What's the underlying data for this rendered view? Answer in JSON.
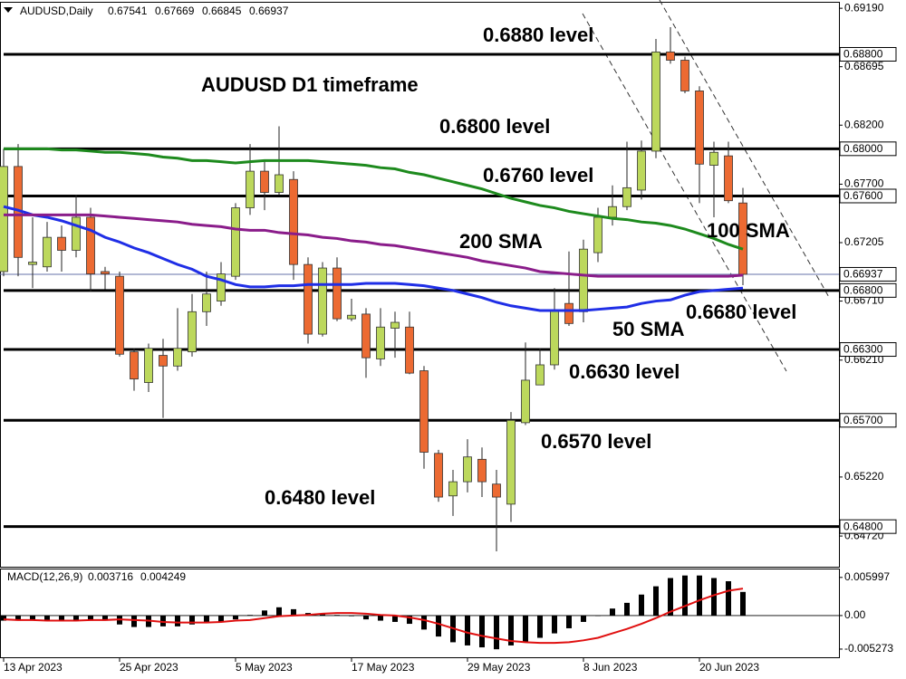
{
  "chart_data": {
    "type": "candlestick",
    "symbol": "AUDUSD,Daily",
    "title": "AUDUSD D1 timeframe",
    "categories": [
      "13 Apr 2023",
      null,
      null,
      null,
      null,
      null,
      null,
      null,
      "25 Apr 2023",
      null,
      null,
      null,
      null,
      null,
      null,
      null,
      "5 May 2023",
      null,
      null,
      null,
      null,
      null,
      null,
      null,
      "17 May 2023",
      null,
      null,
      null,
      null,
      null,
      null,
      null,
      "29 May 2023",
      null,
      null,
      null,
      null,
      null,
      null,
      null,
      "8 Jun 2023",
      null,
      null,
      null,
      null,
      null,
      null,
      null,
      "20 Jun 2023",
      null,
      null,
      null
    ],
    "open": [
      0.6696,
      0.6785,
      0.6702,
      0.67,
      0.6725,
      0.6714,
      0.6742,
      0.6696,
      0.6692,
      0.6628,
      0.6602,
      0.6625,
      0.6616,
      0.6628,
      0.6662,
      0.6671,
      0.6692,
      0.675,
      0.6781,
      0.6763,
      0.6774,
      0.6702,
      0.6643,
      0.6699,
      0.6656,
      0.666,
      0.6622,
      0.6648,
      0.6649,
      0.6612,
      0.6542,
      0.6506,
      0.6518,
      0.6537,
      0.6516,
      0.6499,
      0.6568,
      0.66,
      0.6617,
      0.6669,
      0.6662,
      0.6712,
      0.6742,
      0.6751,
      0.6765,
      0.6798,
      0.6882,
      0.6875,
      0.6849,
      0.6786,
      0.6794,
      0.67541
    ],
    "high": [
      0.68,
      0.6804,
      0.6742,
      0.6738,
      0.6735,
      0.6761,
      0.675,
      0.67,
      0.6696,
      0.6631,
      0.6635,
      0.6639,
      0.6665,
      0.6677,
      0.6696,
      0.6704,
      0.6754,
      0.6804,
      0.679,
      0.6819,
      0.6781,
      0.6708,
      0.6704,
      0.6708,
      0.6673,
      0.6665,
      0.6665,
      0.6662,
      0.6662,
      0.6616,
      0.6545,
      0.6528,
      0.6554,
      0.6547,
      0.6528,
      0.6577,
      0.6636,
      0.6631,
      0.6682,
      0.6713,
      0.6723,
      0.675,
      0.6769,
      0.6806,
      0.6807,
      0.6893,
      0.6903,
      0.6878,
      0.6853,
      0.6806,
      0.6806,
      0.67669
    ],
    "low": [
      0.6692,
      0.6692,
      0.6682,
      0.6696,
      0.6696,
      0.6708,
      0.6679,
      0.6681,
      0.6624,
      0.6595,
      0.6594,
      0.6572,
      0.6612,
      0.6624,
      0.665,
      0.6667,
      0.6689,
      0.6744,
      0.6748,
      0.6761,
      0.6689,
      0.6635,
      0.6641,
      0.6654,
      0.6654,
      0.6606,
      0.6616,
      0.6623,
      0.6609,
      0.6529,
      0.6501,
      0.6489,
      0.6509,
      0.6505,
      0.6459,
      0.6484,
      0.6566,
      0.66,
      0.6613,
      0.665,
      0.6653,
      0.6704,
      0.6735,
      0.6748,
      0.6757,
      0.6792,
      0.6872,
      0.6847,
      0.6754,
      0.6742,
      0.6754,
      0.66845
    ],
    "close": [
      0.6785,
      0.6708,
      0.6704,
      0.6725,
      0.6714,
      0.6742,
      0.6694,
      0.6694,
      0.6626,
      0.6605,
      0.6631,
      0.6616,
      0.6631,
      0.6662,
      0.6677,
      0.6694,
      0.675,
      0.6781,
      0.6763,
      0.6778,
      0.6702,
      0.6643,
      0.6699,
      0.6656,
      0.6659,
      0.6623,
      0.6649,
      0.6653,
      0.661,
      0.6543,
      0.6505,
      0.6518,
      0.6539,
      0.6518,
      0.6505,
      0.657,
      0.6604,
      0.6617,
      0.6663,
      0.6652,
      0.6715,
      0.6742,
      0.6751,
      0.6767,
      0.6798,
      0.6882,
      0.6875,
      0.6849,
      0.6787,
      0.6797,
      0.6756,
      0.66937
    ],
    "up_color": "#bcd85c",
    "down_color": "#ec6a32",
    "ylim": [
      0.6446,
      0.69237
    ],
    "yticks": [
      {
        "value": 0.6919,
        "label": "0.69190"
      },
      {
        "value": 0.68695,
        "label": "0.68695"
      },
      {
        "value": 0.682,
        "label": "0.68200"
      },
      {
        "value": 0.677,
        "label": "0.67700"
      },
      {
        "value": 0.67205,
        "label": "0.67205"
      },
      {
        "value": 0.6671,
        "label": "0.66710"
      },
      {
        "value": 0.6621,
        "label": "0.66210"
      },
      {
        "value": 0.65715,
        "label": "0.65715"
      },
      {
        "value": 0.6522,
        "label": "0.65220"
      },
      {
        "value": 0.6472,
        "label": "0.64720"
      }
    ],
    "levels": [
      {
        "value": 0.688,
        "label": "0.68800",
        "annotation": "0.6880 level"
      },
      {
        "value": 0.68,
        "label": "0.68000",
        "annotation": "0.6800 level"
      },
      {
        "value": 0.676,
        "label": "0.67600",
        "annotation": "0.6760 level"
      },
      {
        "value": 0.668,
        "label": "0.66800",
        "annotation": "0.6680 level"
      },
      {
        "value": 0.663,
        "label": "0.66300",
        "annotation": "0.6630 level"
      },
      {
        "value": 0.657,
        "label": "0.65700",
        "annotation": "0.6570 level"
      },
      {
        "value": 0.648,
        "label": "0.64800",
        "annotation": "0.6480 level"
      }
    ],
    "series": [
      {
        "name": "50 SMA",
        "color": "#1f2ee6",
        "values": [
          0.6751,
          0.6748,
          0.6744,
          0.6742,
          0.6739,
          0.6735,
          0.6731,
          0.6725,
          0.6721,
          0.6716,
          0.6712,
          0.6707,
          0.6702,
          0.6698,
          0.6692,
          0.6689,
          0.6685,
          0.6683,
          0.6683,
          0.6684,
          0.6684,
          0.6685,
          0.6685,
          0.6685,
          0.6685,
          0.6686,
          0.6686,
          0.6686,
          0.6685,
          0.6684,
          0.6682,
          0.668,
          0.6677,
          0.6674,
          0.667,
          0.6667,
          0.6665,
          0.6663,
          0.6663,
          0.6663,
          0.6663,
          0.6664,
          0.6665,
          0.6666,
          0.6669,
          0.6671,
          0.6672,
          0.6676,
          0.6679,
          0.668,
          0.6681,
          0.6682
        ]
      },
      {
        "name": "100 SMA",
        "color": "#1d8a1d",
        "values": [
          0.68,
          0.68,
          0.68,
          0.68,
          0.6799,
          0.6799,
          0.6798,
          0.6797,
          0.6797,
          0.6796,
          0.6795,
          0.6793,
          0.6792,
          0.679,
          0.679,
          0.6789,
          0.6788,
          0.6789,
          0.679,
          0.679,
          0.679,
          0.679,
          0.6789,
          0.6788,
          0.6787,
          0.6786,
          0.6784,
          0.6783,
          0.678,
          0.6778,
          0.6775,
          0.6772,
          0.6769,
          0.6766,
          0.6762,
          0.6758,
          0.6755,
          0.6752,
          0.675,
          0.6747,
          0.6745,
          0.6743,
          0.6741,
          0.674,
          0.6738,
          0.6737,
          0.6735,
          0.6732,
          0.6728,
          0.6724,
          0.6719,
          0.6715
        ]
      },
      {
        "name": "200 SMA",
        "color": "#8a1c8a",
        "values": [
          0.6744,
          0.6744,
          0.6744,
          0.6744,
          0.6744,
          0.6744,
          0.6744,
          0.6743,
          0.6742,
          0.6741,
          0.674,
          0.6739,
          0.6738,
          0.6736,
          0.6735,
          0.6734,
          0.6732,
          0.6731,
          0.6731,
          0.6729,
          0.6728,
          0.6727,
          0.6725,
          0.6724,
          0.6722,
          0.6721,
          0.6719,
          0.6718,
          0.6716,
          0.6714,
          0.6712,
          0.671,
          0.6708,
          0.6705,
          0.6703,
          0.6701,
          0.6699,
          0.6696,
          0.6695,
          0.6694,
          0.6693,
          0.6692,
          0.6692,
          0.6692,
          0.6692,
          0.6692,
          0.6692,
          0.6692,
          0.6692,
          0.6692,
          0.6692,
          0.6693
        ]
      }
    ],
    "macd": {
      "label": "MACD(12,26,9)",
      "ylim": [
        -0.00656,
        0.00725
      ],
      "yticks": [
        0.005997,
        {
          "value": 0,
          "label": "0.00"
        },
        -0.005273
      ],
      "hist_color": "#000000",
      "signal_color": "#e01010",
      "histogram": [
        -0.0008,
        -0.0008,
        -0.0007,
        -0.0007,
        -0.0008,
        -0.0008,
        -0.0008,
        -0.0008,
        -0.0014,
        -0.0018,
        -0.0018,
        -0.0017,
        -0.0017,
        -0.0014,
        -0.0011,
        -0.001,
        -0.0006,
        0.0001,
        0.0008,
        0.0013,
        0.001,
        0.0004,
        0.0003,
        0.0001,
        -0.0001,
        -0.0006,
        -0.0008,
        -0.001,
        -0.0013,
        -0.0022,
        -0.0033,
        -0.0042,
        -0.0047,
        -0.005,
        -0.0053,
        -0.0047,
        -0.0042,
        -0.0035,
        -0.0028,
        -0.002,
        -0.001,
        0.0,
        0.0011,
        0.002,
        0.0033,
        0.0046,
        0.0059,
        0.0063,
        0.0063,
        0.0059,
        0.0054,
        0.003716
      ],
      "signal": [
        -0.0006,
        -0.0007,
        -0.0007,
        -0.0008,
        -0.0008,
        -0.0008,
        -0.0007,
        -0.0007,
        -0.0006,
        -0.0007,
        -0.0008,
        -0.001,
        -0.0011,
        -0.0011,
        -0.0011,
        -0.001,
        -0.0008,
        -0.0007,
        -0.0004,
        -0.0001,
        0.0,
        0.0001,
        0.0003,
        0.0004,
        0.0004,
        0.0003,
        0.0001,
        0.0,
        -0.0003,
        -0.0007,
        -0.0013,
        -0.002,
        -0.0027,
        -0.0032,
        -0.0036,
        -0.004,
        -0.0042,
        -0.0043,
        -0.0043,
        -0.0042,
        -0.0039,
        -0.0035,
        -0.0028,
        -0.0021,
        -0.0013,
        -0.0004,
        0.0006,
        0.0015,
        0.0024,
        0.0032,
        0.0039,
        0.004249
      ]
    }
  }
}
